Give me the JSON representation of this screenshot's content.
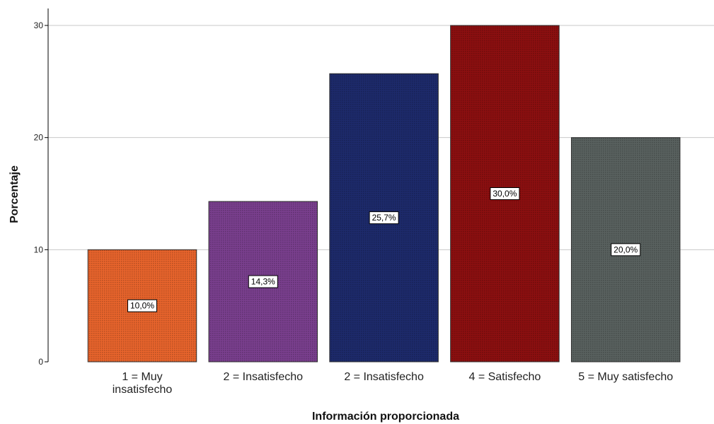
{
  "chart_data": {
    "type": "bar",
    "categories": [
      [
        "1 = Muy",
        "insatisfecho"
      ],
      [
        "2 = Insatisfecho"
      ],
      [
        "2 = Insatisfecho"
      ],
      [
        "4 = Satisfecho"
      ],
      [
        "5 = Muy satisfecho"
      ]
    ],
    "values": [
      10.0,
      14.3,
      25.7,
      30.0,
      20.0
    ],
    "data_labels": [
      "10,0%",
      "14,3%",
      "25,7%",
      "30,0%",
      "20,0%"
    ],
    "colors": [
      "#e8642c",
      "#7a3f8e",
      "#1d2a6b",
      "#8c0f10",
      "#59615f"
    ],
    "xlabel": "Información proporcionada",
    "ylabel": "Porcentaje",
    "ylim": [
      0,
      30
    ],
    "yticks": [
      0,
      10,
      20,
      30
    ],
    "grid": true,
    "legend": "none"
  }
}
